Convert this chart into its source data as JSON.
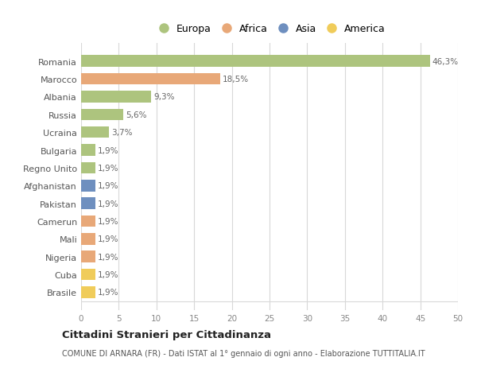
{
  "countries": [
    "Romania",
    "Marocco",
    "Albania",
    "Russia",
    "Ucraina",
    "Bulgaria",
    "Regno Unito",
    "Afghanistan",
    "Pakistan",
    "Camerun",
    "Mali",
    "Nigeria",
    "Cuba",
    "Brasile"
  ],
  "values": [
    46.3,
    18.5,
    9.3,
    5.6,
    3.7,
    1.9,
    1.9,
    1.9,
    1.9,
    1.9,
    1.9,
    1.9,
    1.9,
    1.9
  ],
  "labels": [
    "46,3%",
    "18,5%",
    "9,3%",
    "5,6%",
    "3,7%",
    "1,9%",
    "1,9%",
    "1,9%",
    "1,9%",
    "1,9%",
    "1,9%",
    "1,9%",
    "1,9%",
    "1,9%"
  ],
  "continents": [
    "Europa",
    "Africa",
    "Europa",
    "Europa",
    "Europa",
    "Europa",
    "Europa",
    "Asia",
    "Asia",
    "Africa",
    "Africa",
    "Africa",
    "America",
    "America"
  ],
  "continent_colors": {
    "Europa": "#adc47e",
    "Africa": "#e8a878",
    "Asia": "#6e8fbf",
    "America": "#f0cc5a"
  },
  "legend_order": [
    "Europa",
    "Africa",
    "Asia",
    "America"
  ],
  "title": "Cittadini Stranieri per Cittadinanza",
  "subtitle": "COMUNE DI ARNARA (FR) - Dati ISTAT al 1° gennaio di ogni anno - Elaborazione TUTTITALIA.IT",
  "xlim": [
    0,
    50
  ],
  "xticks": [
    0,
    5,
    10,
    15,
    20,
    25,
    30,
    35,
    40,
    45,
    50
  ],
  "background_color": "#ffffff",
  "grid_color": "#d8d8d8",
  "bar_height": 0.65
}
